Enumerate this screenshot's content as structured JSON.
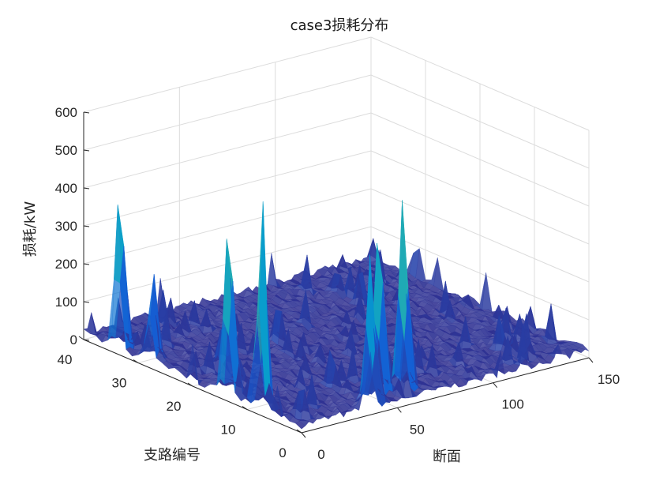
{
  "chart_data": {
    "type": "surface3d",
    "title": "case3损耗分布",
    "xlabel": "断面",
    "ylabel": "支路编号",
    "zlabel": "损耗/kW",
    "xlim": [
      0,
      150
    ],
    "ylim": [
      0,
      40
    ],
    "zlim": [
      0,
      600
    ],
    "xticks": [
      "0",
      "50",
      "100",
      "150"
    ],
    "yticks": [
      "0",
      "10",
      "20",
      "30",
      "40"
    ],
    "zticks": [
      "0",
      "100",
      "200",
      "300",
      "400",
      "500",
      "600"
    ],
    "colormap": "parula",
    "grid": true,
    "baseline": 20,
    "peaks": [
      {
        "x": 2,
        "y": 34,
        "z": 480
      },
      {
        "x": 2,
        "y": 28,
        "z": 270
      },
      {
        "x": 2,
        "y": 14,
        "z": 530
      },
      {
        "x": 2,
        "y": 8,
        "z": 600
      },
      {
        "x": 19,
        "y": 21,
        "z": 140
      },
      {
        "x": 35,
        "y": 0,
        "z": 195
      },
      {
        "x": 42,
        "y": 2,
        "z": 430
      },
      {
        "x": 52,
        "y": 4,
        "z": 520
      },
      {
        "x": 62,
        "y": 3,
        "z": 590
      }
    ]
  }
}
